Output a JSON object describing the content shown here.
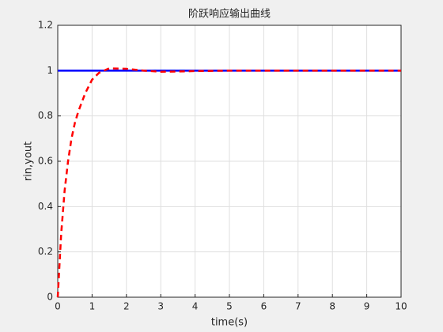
{
  "chart_data": {
    "type": "line",
    "title": "阶跃响应输出曲线",
    "xlabel": "time(s)",
    "ylabel": "rin,yout",
    "x": [
      0,
      0.1,
      0.2,
      0.3,
      0.4,
      0.5,
      0.6,
      0.8,
      1.0,
      1.2,
      1.5,
      2,
      2.5,
      3,
      3.5,
      4,
      5,
      6,
      7,
      8,
      9,
      10
    ],
    "series": [
      {
        "color": "#0000ff",
        "style": "solid",
        "values": [
          1,
          1,
          1,
          1,
          1,
          1,
          1,
          1,
          1,
          1,
          1,
          1,
          1,
          1,
          1,
          1,
          1,
          1,
          1,
          1,
          1,
          1
        ]
      },
      {
        "color": "#ff0000",
        "style": "dashed",
        "values": [
          0,
          0.28,
          0.47,
          0.6,
          0.7,
          0.77,
          0.82,
          0.9,
          0.96,
          0.99,
          1.01,
          1.008,
          1.0,
          0.995,
          0.996,
          0.998,
          1.0,
          1,
          1,
          1,
          1,
          1
        ]
      }
    ],
    "xlim": [
      0,
      10
    ],
    "xticks": [
      0,
      1,
      2,
      3,
      4,
      5,
      6,
      7,
      8,
      9,
      10
    ],
    "ylim": [
      0,
      1.2
    ],
    "yticks": [
      0,
      0.2,
      0.4,
      0.6,
      0.8,
      1,
      1.2
    ],
    "grid": true
  }
}
